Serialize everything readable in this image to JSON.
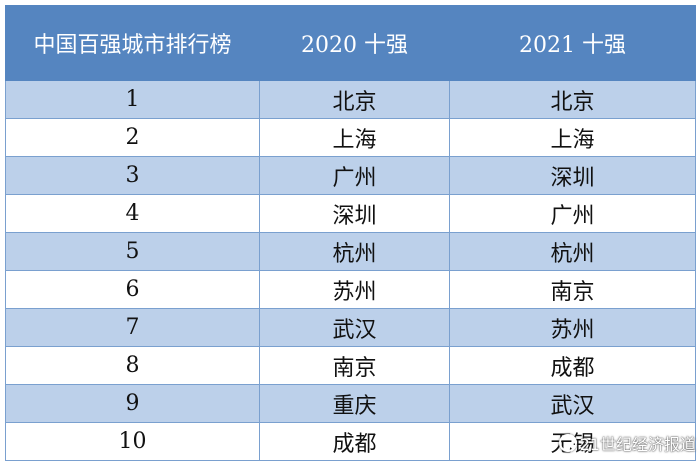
{
  "table": {
    "headers": [
      "中国百强城市排行榜",
      "2020 十强",
      "2021 十强"
    ],
    "rows": [
      {
        "rank": "1",
        "y2020": "北京",
        "y2021": "北京"
      },
      {
        "rank": "2",
        "y2020": "上海",
        "y2021": "上海"
      },
      {
        "rank": "3",
        "y2020": "广州",
        "y2021": "深圳"
      },
      {
        "rank": "4",
        "y2020": "深圳",
        "y2021": "广州"
      },
      {
        "rank": "5",
        "y2020": "杭州",
        "y2021": "杭州"
      },
      {
        "rank": "6",
        "y2020": "苏州",
        "y2021": "南京"
      },
      {
        "rank": "7",
        "y2020": "武汉",
        "y2021": "苏州"
      },
      {
        "rank": "8",
        "y2020": "南京",
        "y2021": "成都"
      },
      {
        "rank": "9",
        "y2020": "重庆",
        "y2021": "武汉"
      },
      {
        "rank": "10",
        "y2020": "成都",
        "y2021": "无锡"
      }
    ]
  },
  "watermark": {
    "text": "21世纪经济报道",
    "icon": "logo-circle-icon"
  },
  "colors": {
    "header_bg": "#5585c0",
    "band_bg": "#bcd0ea",
    "border": "#7aa0cf"
  }
}
